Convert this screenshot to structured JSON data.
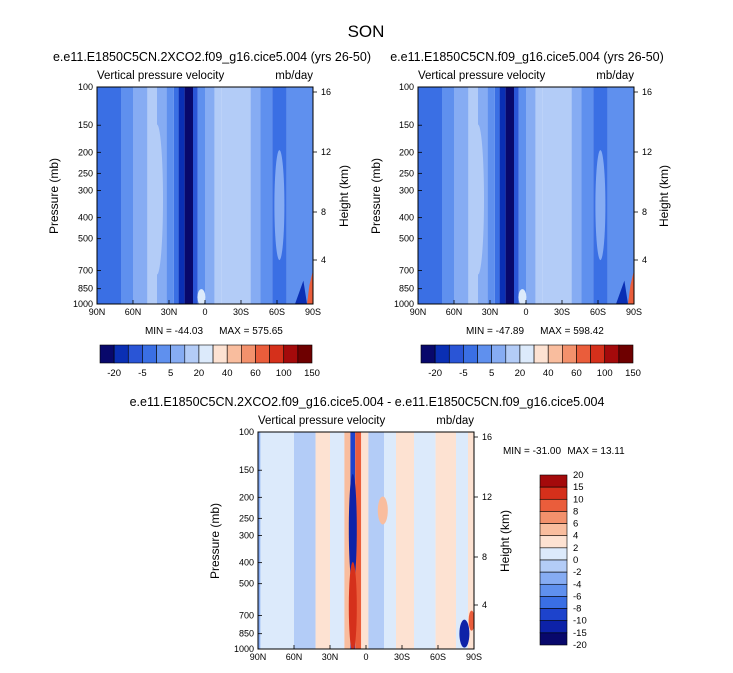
{
  "figure": {
    "title": "SON"
  },
  "palettes": {
    "full": [
      "#08086b",
      "#0a2fb4",
      "#2a55d6",
      "#3a6fe4",
      "#5f90ee",
      "#86acf3",
      "#b3ccf7",
      "#dceafb",
      "#fde2d2",
      "#f9bd9e",
      "#f3916c",
      "#ea5d3b",
      "#d5301b",
      "#a40a0b",
      "#6e0000"
    ],
    "diff": [
      "#08086b",
      "#0d22a8",
      "#1d43cc",
      "#3a6fe4",
      "#5f90ee",
      "#86acf3",
      "#b3ccf7",
      "#dceafb",
      "#fde2d2",
      "#f9bd9e",
      "#f3916c",
      "#ea5d3b",
      "#d5301b",
      "#a40a0b"
    ]
  },
  "chart_data": [
    {
      "type": "heatmap",
      "title": "e.e11.E1850C5CN.2XCO2.f09_g16.cice5.004 (yrs 26-50)",
      "left_label": "Vertical pressure velocity",
      "right_label": "mb/day",
      "xlabel": "",
      "ylabel": "Pressure (mb)",
      "ylabel_right": "Height (km)",
      "x_ticks": [
        "90N",
        "60N",
        "30N",
        "0",
        "30S",
        "60S",
        "90S"
      ],
      "x_range": [
        90,
        -90
      ],
      "y_ticks": [
        "100",
        "150",
        "200",
        "250",
        "300",
        "400",
        "500",
        "700",
        "850",
        "1000"
      ],
      "y_range": [
        100,
        1000
      ],
      "y_scale": "log",
      "y_ticks_right": [
        "16",
        "12",
        "8",
        "4"
      ],
      "min_label": "MIN = -44.03",
      "max_label": "MAX = 575.65",
      "colorbar_labels": [
        "-20",
        "-5",
        "5",
        "20",
        "40",
        "60",
        "100",
        "150"
      ],
      "colorbar_levels": [
        "-20",
        "-10",
        "-5",
        "0",
        "5",
        "10",
        "20",
        "30",
        "40",
        "50",
        "60",
        "80",
        "100",
        "120",
        "150"
      ]
    },
    {
      "type": "heatmap",
      "title": "e.e11.E1850C5CN.f09_g16.cice5.004 (yrs 26-50)",
      "left_label": "Vertical pressure velocity",
      "right_label": "mb/day",
      "xlabel": "",
      "ylabel": "Pressure (mb)",
      "ylabel_right": "Height (km)",
      "x_ticks": [
        "90N",
        "60N",
        "30N",
        "0",
        "30S",
        "60S",
        "90S"
      ],
      "x_range": [
        90,
        -90
      ],
      "y_ticks": [
        "100",
        "150",
        "200",
        "250",
        "300",
        "400",
        "500",
        "700",
        "850",
        "1000"
      ],
      "y_range": [
        100,
        1000
      ],
      "y_scale": "log",
      "y_ticks_right": [
        "16",
        "12",
        "8",
        "4"
      ],
      "min_label": "MIN = -47.89",
      "max_label": "MAX = 598.42",
      "colorbar_labels": [
        "-20",
        "-5",
        "5",
        "20",
        "40",
        "60",
        "100",
        "150"
      ],
      "colorbar_levels": [
        "-20",
        "-10",
        "-5",
        "0",
        "5",
        "10",
        "20",
        "30",
        "40",
        "50",
        "60",
        "80",
        "100",
        "120",
        "150"
      ]
    },
    {
      "type": "heatmap",
      "title": "e.e11.E1850C5CN.2XCO2.f09_g16.cice5.004 - e.e11.E1850C5CN.f09_g16.cice5.004",
      "left_label": "Vertical pressure velocity",
      "right_label": "mb/day",
      "xlabel": "",
      "ylabel": "Pressure (mb)",
      "ylabel_right": "Height (km)",
      "x_ticks": [
        "90N",
        "60N",
        "30N",
        "0",
        "30S",
        "60S",
        "90S"
      ],
      "x_range": [
        90,
        -90
      ],
      "y_ticks": [
        "100",
        "150",
        "200",
        "250",
        "300",
        "400",
        "500",
        "700",
        "850",
        "1000"
      ],
      "y_range": [
        100,
        1000
      ],
      "y_scale": "log",
      "y_ticks_right": [
        "16",
        "12",
        "8",
        "4"
      ],
      "min_label": "MIN = -31.00",
      "max_label": "MAX =  13.11",
      "colorbar_labels": [
        "20",
        "15",
        "10",
        "8",
        "6",
        "4",
        "2",
        "0",
        "-2",
        "-4",
        "-6",
        "-8",
        "-10",
        "-15",
        "-20"
      ]
    }
  ]
}
